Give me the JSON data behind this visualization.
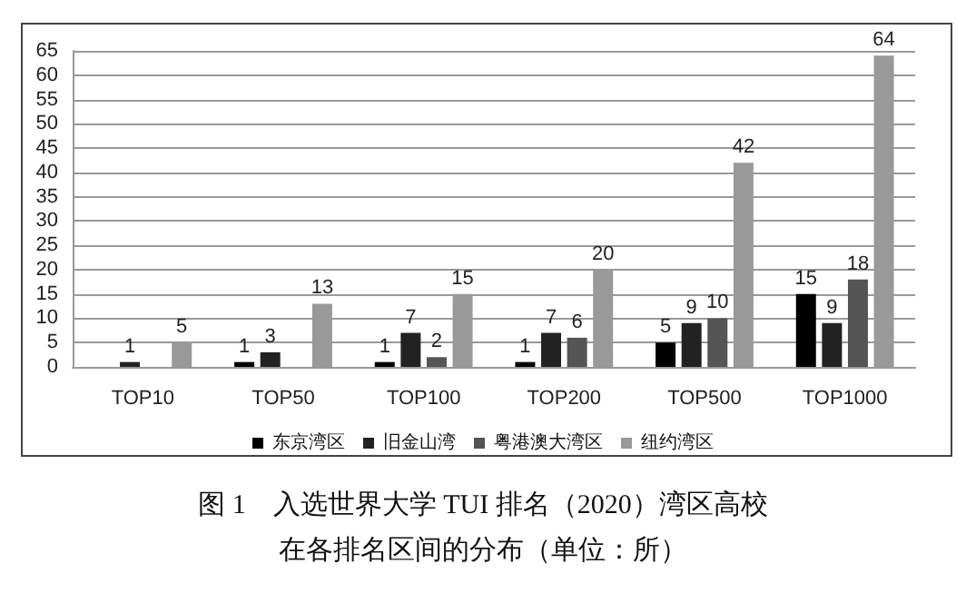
{
  "chart_data": {
    "type": "bar",
    "title": "图 1　入选世界大学 TUI 排名（2020）湾区高校",
    "subtitle": "在各排名区间的分布（单位：所）",
    "categories": [
      "TOP10",
      "TOP50",
      "TOP100",
      "TOP200",
      "TOP500",
      "TOP1000"
    ],
    "series": [
      {
        "name": "东京湾区",
        "color": "#000000",
        "values": [
          0,
          1,
          1,
          1,
          5,
          15
        ],
        "value_labels": [
          null,
          "1",
          "1",
          "1",
          "5",
          "15"
        ]
      },
      {
        "name": "旧金山湾",
        "color": "#222222",
        "values": [
          1,
          3,
          7,
          7,
          9,
          9
        ],
        "value_labels": [
          "1",
          "3",
          "7",
          "7",
          "9",
          "9"
        ]
      },
      {
        "name": "粤港澳大湾区",
        "color": "#555555",
        "values": [
          0,
          0,
          2,
          6,
          10,
          18
        ],
        "value_labels": [
          null,
          null,
          "2",
          "6",
          "10",
          "18"
        ]
      },
      {
        "name": "纽约湾区",
        "color": "#999999",
        "values": [
          5,
          13,
          15,
          20,
          42,
          64
        ],
        "value_labels": [
          "5",
          "13",
          "15",
          "20",
          "42",
          "64"
        ]
      }
    ],
    "ylim": [
      0,
      65
    ],
    "yticks": [
      0,
      5,
      10,
      15,
      20,
      25,
      30,
      35,
      40,
      45,
      50,
      55,
      60,
      65
    ],
    "grid": "y",
    "legend": "bottom"
  }
}
